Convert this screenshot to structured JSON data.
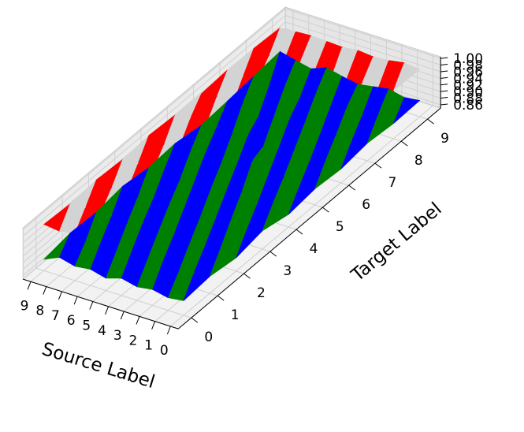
{
  "chart_data": {
    "type": "surface3d",
    "xlabel": "Source Label",
    "ylabel": "Target Label",
    "zlabel": "",
    "x_ticks": [
      "0",
      "1",
      "2",
      "3",
      "4",
      "5",
      "6",
      "7",
      "8",
      "9"
    ],
    "y_ticks": [
      "0",
      "1",
      "2",
      "3",
      "4",
      "5",
      "6",
      "7",
      "8",
      "9"
    ],
    "z_ticks": [
      "0.86",
      "0.88",
      "0.90",
      "0.92",
      "0.94",
      "0.96",
      "0.98",
      "1.00"
    ],
    "zlim": [
      0.85,
      1.005
    ],
    "grid": true,
    "series": [
      {
        "colors": [
          "#ff0000",
          "#d3d3d3"
        ],
        "z": [
          [
            0.985,
            0.99,
            0.982,
            0.992,
            0.986,
            0.994,
            0.98,
            0.99,
            0.995,
            0.993
          ],
          [
            0.988,
            0.975,
            0.99,
            0.984,
            0.995,
            0.981,
            0.989,
            0.992,
            0.986,
            0.998
          ],
          [
            0.982,
            0.991,
            0.986,
            0.978,
            0.99,
            0.987,
            0.993,
            0.98,
            0.991,
            0.99
          ],
          [
            0.99,
            0.984,
            0.993,
            0.988,
            0.972,
            0.991,
            0.985,
            0.994,
            0.988,
            0.986
          ],
          [
            0.979,
            0.992,
            0.985,
            0.99,
            0.986,
            0.983,
            0.995,
            0.987,
            0.976,
            0.991
          ],
          [
            0.991,
            0.986,
            0.99,
            0.982,
            0.993,
            0.988,
            0.981,
            0.99,
            0.989,
            0.985
          ],
          [
            0.986,
            0.983,
            0.976,
            0.991,
            0.985,
            0.99,
            0.987,
            0.983,
            0.993,
            0.988
          ],
          [
            0.992,
            0.989,
            0.988,
            0.985,
            0.99,
            0.984,
            0.978,
            0.992,
            0.986,
            0.99
          ],
          [
            0.984,
            0.99,
            0.983,
            0.989,
            0.981,
            0.993,
            0.99,
            0.985,
            0.982,
            0.987
          ],
          [
            0.99,
            0.985,
            0.991,
            0.986,
            0.992,
            0.987,
            0.984,
            0.99,
            0.988,
            0.983
          ]
        ]
      },
      {
        "colors": [
          "#008000",
          "#0000ff"
        ],
        "z": [
          [
            0.894,
            0.901,
            0.89,
            0.905,
            0.888,
            0.898,
            0.892,
            0.903,
            0.896,
            0.899
          ],
          [
            0.888,
            0.899,
            0.904,
            0.893,
            0.907,
            0.89,
            0.901,
            0.895,
            0.906,
            0.893
          ],
          [
            0.898,
            0.885,
            0.896,
            0.91,
            0.891,
            0.903,
            0.887,
            0.899,
            0.892,
            0.904
          ],
          [
            0.891,
            0.903,
            0.887,
            0.897,
            0.912,
            0.894,
            0.905,
            0.89,
            0.9,
            0.896
          ],
          [
            0.902,
            0.893,
            0.9,
            0.886,
            0.899,
            0.925,
            0.897,
            0.907,
            0.894,
            0.888
          ],
          [
            0.887,
            0.905,
            0.894,
            0.902,
            0.89,
            0.899,
            0.886,
            0.901,
            0.911,
            0.897
          ],
          [
            0.899,
            0.889,
            0.906,
            0.893,
            0.904,
            0.888,
            0.902,
            0.895,
            0.887,
            0.908
          ],
          [
            0.893,
            0.901,
            0.891,
            0.899,
            0.887,
            0.906,
            0.894,
            0.88,
            0.903,
            0.89
          ],
          [
            0.905,
            0.886,
            0.898,
            0.889,
            0.903,
            0.892,
            0.899,
            0.906,
            0.891,
            0.9
          ],
          [
            0.884,
            0.897,
            0.893,
            0.905,
            0.895,
            0.901,
            0.889,
            0.896,
            0.904,
            0.912
          ]
        ]
      }
    ]
  }
}
